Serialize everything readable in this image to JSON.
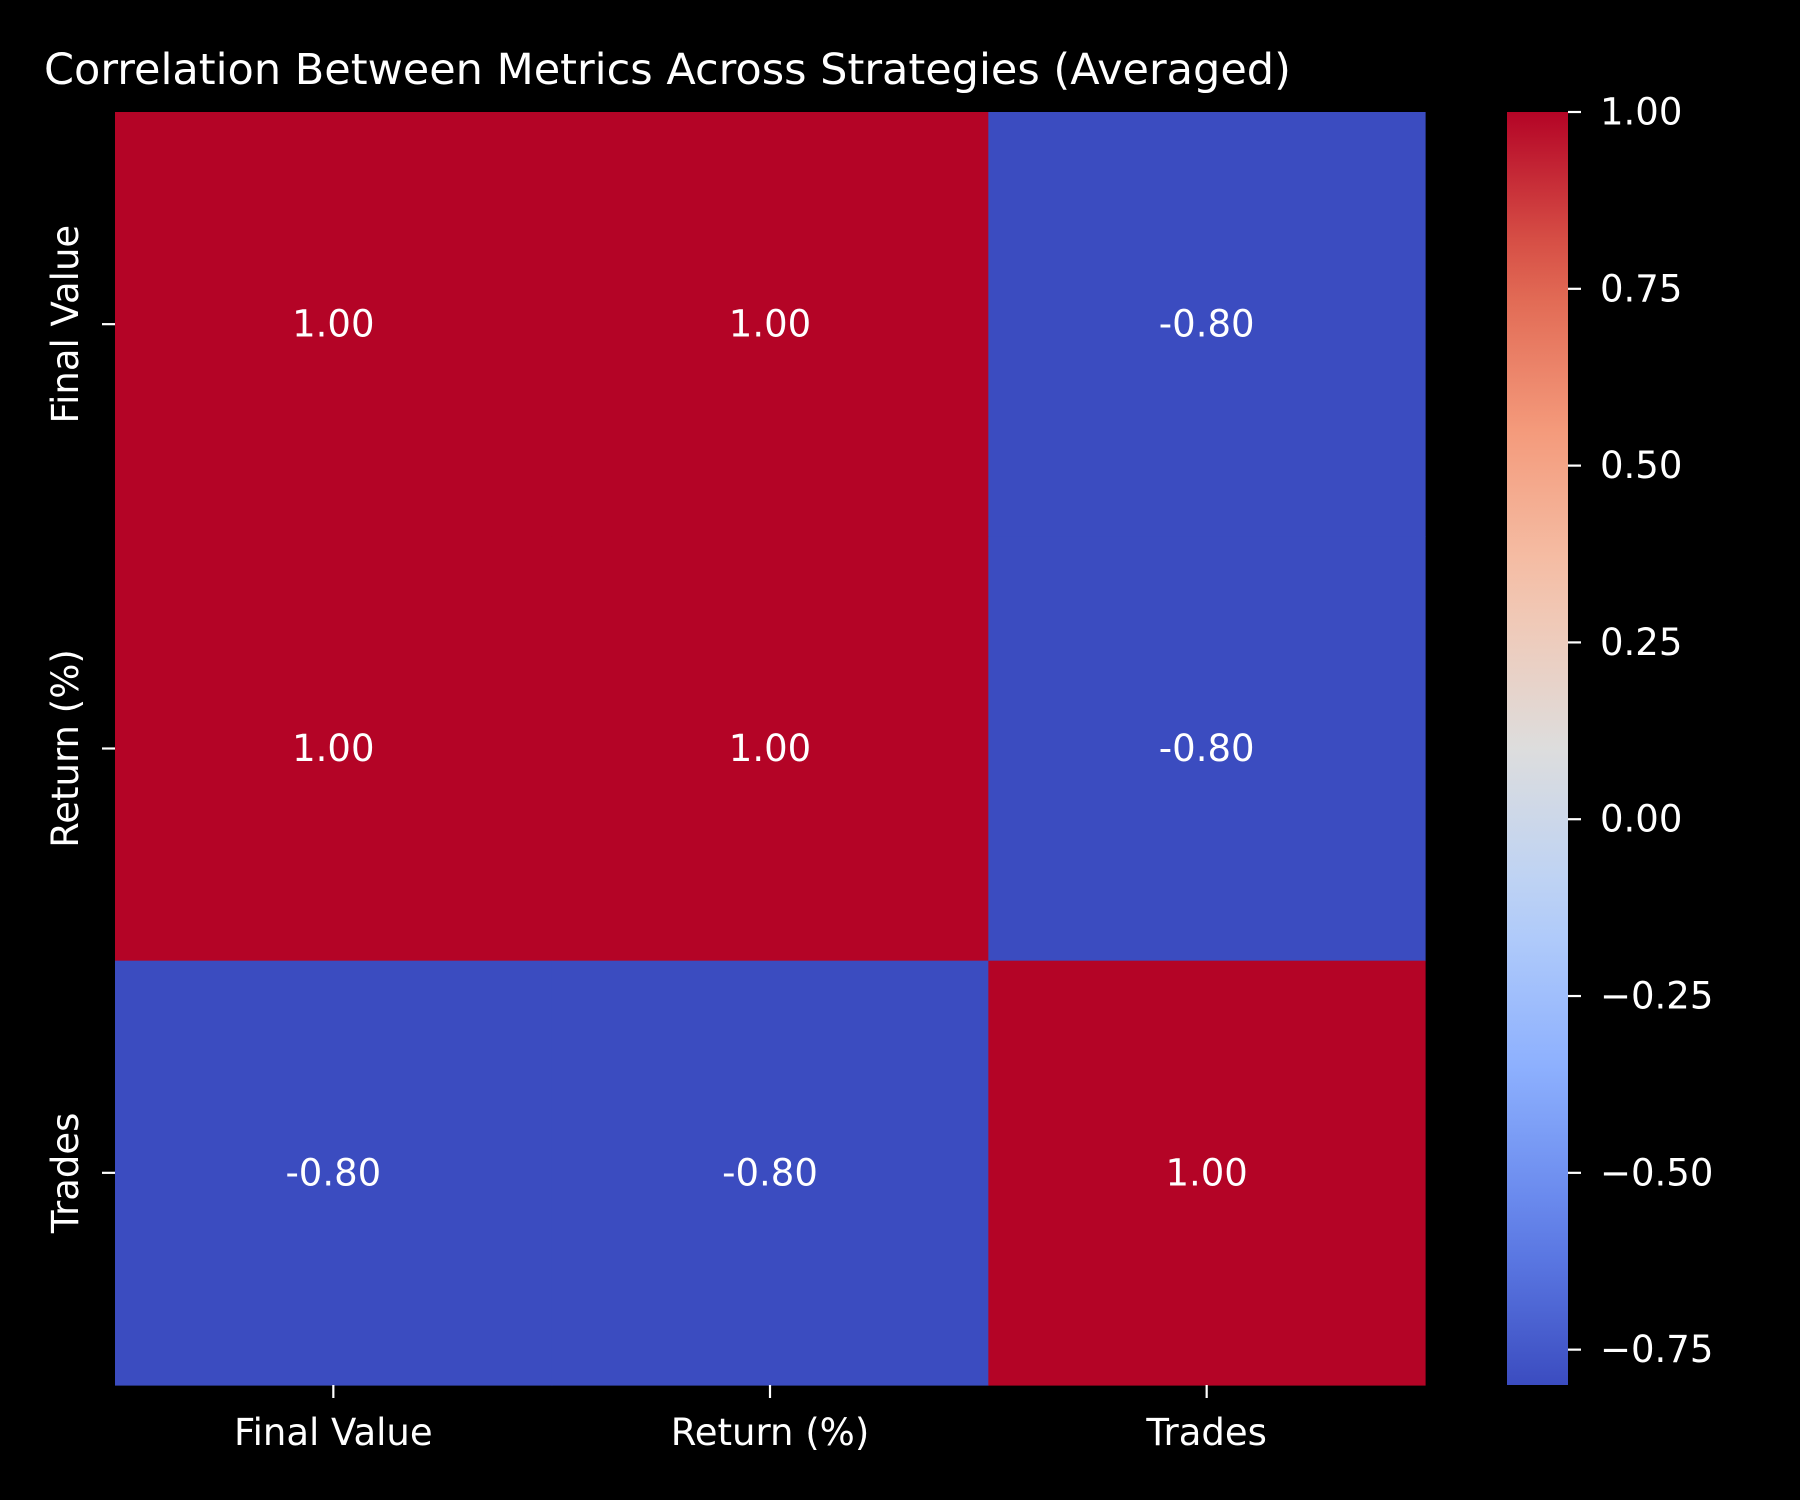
{
  "chart_data": {
    "type": "heatmap",
    "title": "Correlation Between Metrics Across Strategies (Averaged)",
    "row_labels": [
      "Final Value",
      "Return (%)",
      "Trades"
    ],
    "col_labels": [
      "Final Value",
      "Return (%)",
      "Trades"
    ],
    "values": [
      [
        1.0,
        1.0,
        -0.8
      ],
      [
        1.0,
        1.0,
        -0.8
      ],
      [
        -0.8,
        -0.8,
        1.0
      ]
    ],
    "cell_labels": [
      [
        "1.00",
        "1.00",
        "-0.80"
      ],
      [
        "1.00",
        "1.00",
        "-0.80"
      ],
      [
        "-0.80",
        "-0.80",
        "1.00"
      ]
    ],
    "colormap": "coolwarm",
    "colorbar": {
      "range": [
        -0.8,
        1.0
      ],
      "ticks": [
        1.0,
        0.75,
        0.5,
        0.25,
        0.0,
        -0.25,
        -0.5,
        -0.75
      ],
      "tick_labels": [
        "1.00",
        "0.75",
        "0.50",
        "0.25",
        "0.00",
        "−0.25",
        "−0.50",
        "−0.75"
      ]
    },
    "colors": {
      "background": "#000000",
      "text": "#ffffff",
      "high": "#b40426",
      "low": "#3b4cc0"
    }
  }
}
